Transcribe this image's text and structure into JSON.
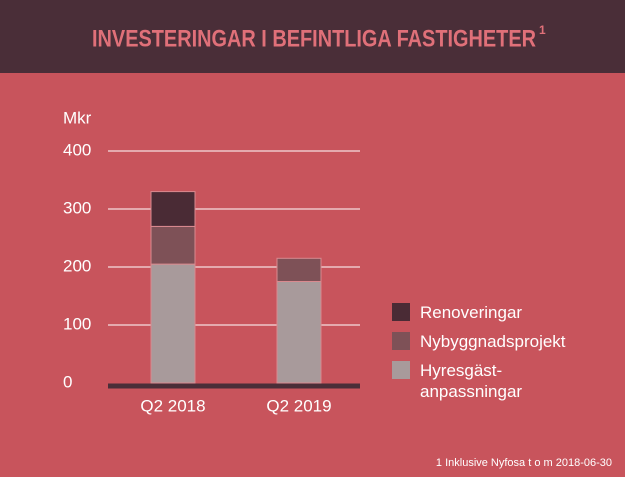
{
  "chart_data": {
    "type": "bar",
    "stacked": true,
    "title": "INVESTERINGAR I BEFINTLIGA FASTIGHETER",
    "title_superscript": "1",
    "ylabel": "Mkr",
    "footnote": "1 Inklusive Nyfosa t o m 2018-06-30",
    "categories": [
      "Q2 2018",
      "Q2 2019"
    ],
    "series": [
      {
        "name": "Hyresgäst-anpassningar",
        "color": "#a89a9b",
        "values": [
          205,
          175
        ]
      },
      {
        "name": "Nybyggnadsprojekt",
        "color": "#7e5157",
        "values": [
          65,
          40
        ]
      },
      {
        "name": "Renoveringar",
        "color": "#4a2b35",
        "values": [
          60,
          0
        ]
      }
    ],
    "ylim": [
      0,
      400
    ],
    "yticks": [
      0,
      100,
      200,
      300,
      400
    ],
    "grid": true,
    "legend": "right"
  }
}
